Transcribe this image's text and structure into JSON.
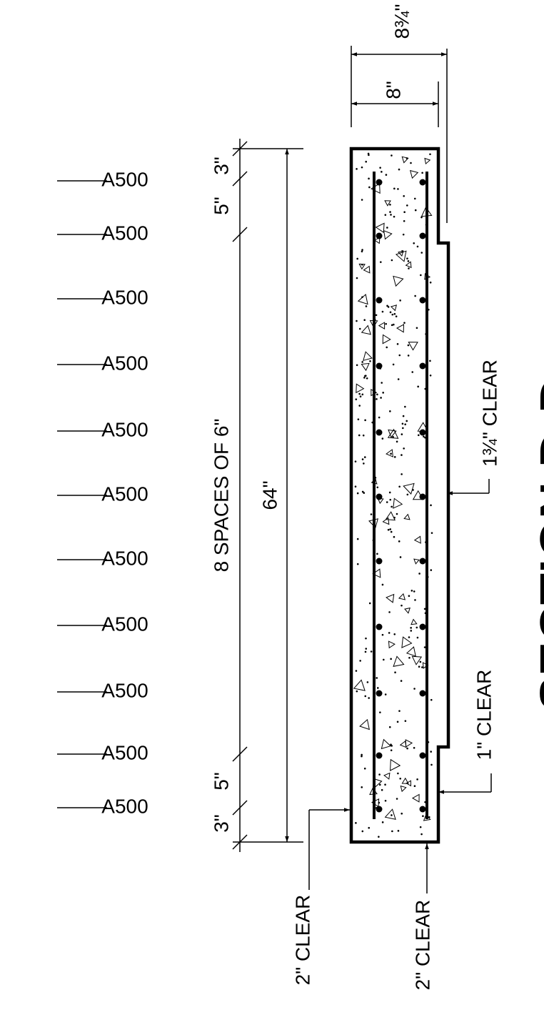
{
  "dimensions": {
    "overall_width": "8¾\"",
    "wall_width": "8\"",
    "top_end": "3\"",
    "top_first": "5\"",
    "spacing": "8 SPACES OF 6\"",
    "height": "64\"",
    "bottom_last": "5\"",
    "bottom_end": "3\""
  },
  "bar_labels": [
    "A500",
    "A500",
    "A500",
    "A500",
    "A500",
    "A500",
    "A500",
    "A500",
    "A500",
    "A500",
    "A500"
  ],
  "clear_notes": {
    "face": "1¾\" CLEAR",
    "step": "1\" CLEAR",
    "left": "2\" CLEAR",
    "bottom": "2\" CLEAR"
  },
  "title": "SECTION D-D"
}
